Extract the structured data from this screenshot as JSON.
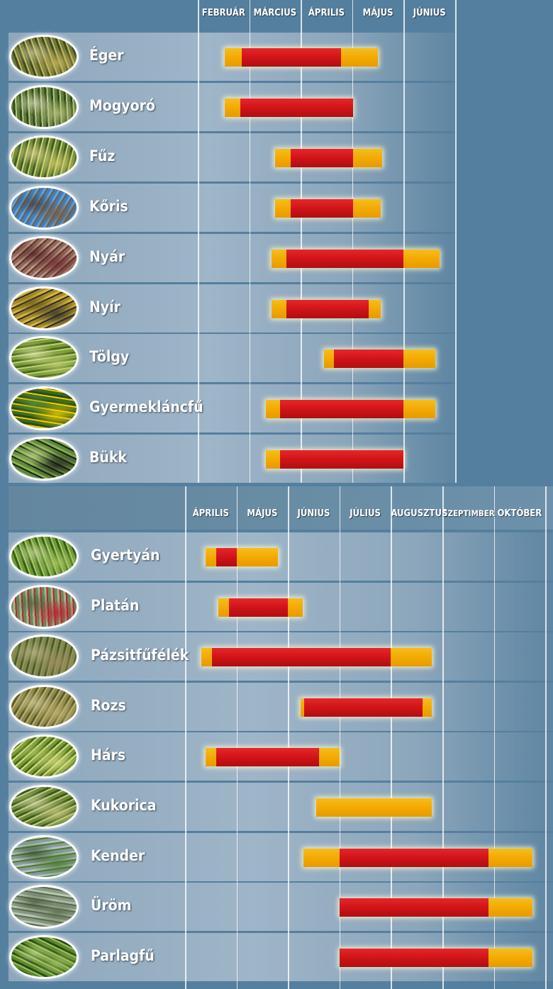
{
  "chart_data": [
    {
      "type": "gantt",
      "months": [
        "FEBRUÁR",
        "MÁRCIUS",
        "ÁPRILIS",
        "MÁJUS",
        "JÚNIUS"
      ],
      "legend": {
        "low": "#f2a600",
        "high": "#cf1418"
      },
      "plants": [
        {
          "name": "Éger",
          "icon": "alder-catkin-photo",
          "start": 0.53,
          "peak_start": 0.85,
          "peak_end": 2.78,
          "end": 3.5
        },
        {
          "name": "Mogyoró",
          "icon": "hazel-catkin-photo",
          "start": 0.53,
          "peak_start": 0.82,
          "peak_end": 3.02,
          "end": 3.02
        },
        {
          "name": "Fűz",
          "icon": "willow-catkin-photo",
          "start": 1.5,
          "peak_start": 1.8,
          "peak_end": 3.02,
          "end": 3.58
        },
        {
          "name": "Kőris",
          "icon": "ash-flower-photo",
          "start": 1.5,
          "peak_start": 1.8,
          "peak_end": 3.02,
          "end": 3.55
        },
        {
          "name": "Nyár",
          "icon": "poplar-catkin-photo",
          "start": 1.43,
          "peak_start": 1.72,
          "peak_end": 4.0,
          "end": 4.7
        },
        {
          "name": "Nyír",
          "icon": "birch-catkin-photo",
          "start": 1.43,
          "peak_start": 1.72,
          "peak_end": 3.32,
          "end": 3.55
        },
        {
          "name": "Tölgy",
          "icon": "oak-catkin-photo",
          "start": 2.45,
          "peak_start": 2.65,
          "peak_end": 4.0,
          "end": 4.62
        },
        {
          "name": "Gyermekláncfű",
          "icon": "dandelion-photo",
          "start": 1.32,
          "peak_start": 1.6,
          "peak_end": 4.0,
          "end": 4.62
        },
        {
          "name": "Bükk",
          "icon": "beech-flower-photo",
          "start": 1.32,
          "peak_start": 1.6,
          "peak_end": 4.0,
          "end": 4.0
        }
      ]
    },
    {
      "type": "gantt",
      "months": [
        "ÁPRILIS",
        "MÁJUS",
        "JÚNIUS",
        "JÚLIUS",
        "AUGUSZTUS",
        "SZEPTIMBER",
        "OKTÓBER"
      ],
      "legend": {
        "low": "#f2a600",
        "high": "#cf1418"
      },
      "plants": [
        {
          "name": "Gyertyán",
          "icon": "hornbeam-photo",
          "start": 0.4,
          "peak_start": 0.6,
          "peak_end": 1.0,
          "end": 1.8
        },
        {
          "name": "Platán",
          "icon": "plane-tree-photo",
          "start": 0.65,
          "peak_start": 0.85,
          "peak_end": 2.0,
          "end": 2.28
        },
        {
          "name": "Pázsitfűfélék",
          "icon": "grass-photo",
          "start": 0.32,
          "peak_start": 0.52,
          "peak_end": 4.0,
          "end": 4.8
        },
        {
          "name": "Rozs",
          "icon": "rye-photo",
          "start": 2.25,
          "peak_start": 2.31,
          "peak_end": 4.62,
          "end": 4.8
        },
        {
          "name": "Hárs",
          "icon": "linden-flower-photo",
          "start": 0.4,
          "peak_start": 0.6,
          "peak_end": 2.6,
          "end": 3.0
        },
        {
          "name": "Kukorica",
          "icon": "corn-photo",
          "start": 2.55,
          "peak_start": 2.55,
          "peak_end": 2.55,
          "end": 4.8
        },
        {
          "name": "Kender",
          "icon": "hemp-photo",
          "start": 2.3,
          "peak_start": 3.0,
          "peak_end": 5.9,
          "end": 6.75
        },
        {
          "name": "Üröm",
          "icon": "mugwort-photo",
          "start": 3.0,
          "peak_start": 3.0,
          "peak_end": 5.9,
          "end": 6.75
        },
        {
          "name": "Parlagfű",
          "icon": "ragweed-photo",
          "start": 3.0,
          "peak_start": 3.0,
          "peak_end": 5.9,
          "end": 6.75
        }
      ]
    }
  ]
}
